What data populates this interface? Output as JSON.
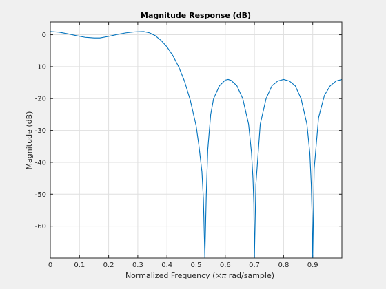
{
  "chart_data": {
    "type": "line",
    "title": "Magnitude Response (dB)",
    "xlabel_prefix": "Normalized Frequency  (×",
    "xlabel_pi": "π",
    "xlabel_suffix": " rad/sample)",
    "ylabel": "Magnitude (dB)",
    "xlim": [
      0,
      1
    ],
    "ylim": [
      -70,
      4
    ],
    "xticks": [
      0,
      0.1,
      0.2,
      0.3,
      0.4,
      0.5,
      0.6,
      0.7,
      0.8,
      0.9
    ],
    "xtick_labels": [
      "0",
      "0.1",
      "0.2",
      "0.3",
      "0.4",
      "0.5",
      "0.6",
      "0.7",
      "0.8",
      "0.9"
    ],
    "yticks": [
      0,
      -10,
      -20,
      -30,
      -40,
      -50,
      -60
    ],
    "ytick_labels": [
      "0",
      "-10",
      "-20",
      "-30",
      "-40",
      "-50",
      "-60"
    ],
    "grid": true,
    "series": [
      {
        "color": "#0072bd",
        "x": [
          0,
          0.03,
          0.06,
          0.09,
          0.12,
          0.15,
          0.17,
          0.2,
          0.23,
          0.26,
          0.29,
          0.32,
          0.34,
          0.36,
          0.38,
          0.4,
          0.42,
          0.44,
          0.46,
          0.48,
          0.5,
          0.51,
          0.52,
          0.525,
          0.53,
          0.535,
          0.54,
          0.55,
          0.56,
          0.58,
          0.6,
          0.61,
          0.62,
          0.64,
          0.66,
          0.68,
          0.69,
          0.695,
          0.698,
          0.7,
          0.705,
          0.72,
          0.74,
          0.76,
          0.78,
          0.8,
          0.82,
          0.84,
          0.86,
          0.88,
          0.89,
          0.895,
          0.898,
          0.9,
          0.905,
          0.92,
          0.94,
          0.96,
          0.98,
          1.0
        ],
        "y": [
          1.0,
          0.8,
          0.3,
          -0.3,
          -0.8,
          -1.0,
          -1.0,
          -0.5,
          0.1,
          0.6,
          0.9,
          1.0,
          0.6,
          -0.3,
          -1.8,
          -3.8,
          -6.5,
          -10.0,
          -14.5,
          -20.5,
          -28.5,
          -35.0,
          -43.0,
          -51.5,
          -75.0,
          -50.0,
          -36.0,
          -25.0,
          -20.0,
          -16.0,
          -14.2,
          -14.0,
          -14.3,
          -16.0,
          -20.0,
          -28.0,
          -37.0,
          -45.0,
          -53.0,
          -75.0,
          -47.0,
          -28.0,
          -20.0,
          -16.0,
          -14.5,
          -14.0,
          -14.5,
          -16.0,
          -20.0,
          -28.0,
          -37.0,
          -47.0,
          -57.5,
          -75.0,
          -42.0,
          -26.0,
          -19.0,
          -16.0,
          -14.5,
          -14.0
        ]
      }
    ]
  }
}
